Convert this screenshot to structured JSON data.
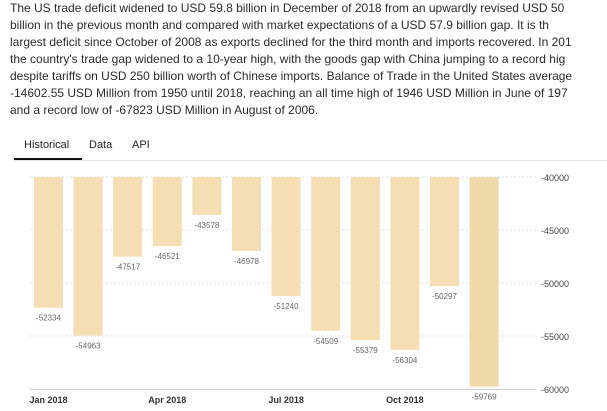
{
  "description": {
    "lines": [
      "The US trade deficit widened to USD 59.8 billion in December of 2018 from an upwardly revised USD 50",
      "billion in the previous month and compared with market expectations of a USD 57.9 billion gap. It is th",
      "largest deficit since October of 2008 as exports declined for the third month and imports recovered. In 201",
      "the country's trade gap widened to a 10-year high, with the goods gap with China jumping to a record hig",
      "despite tariffs on USD 250 billion worth of Chinese imports. Balance of Trade in the United States average",
      "-14602.55 USD Million from 1950 until 2018, reaching an all time high of 1946 USD Million in June of 197",
      "and a record low of -67823 USD Million in August of 2006."
    ]
  },
  "tabs": [
    {
      "label": "Historical",
      "active": true
    },
    {
      "label": "Data",
      "active": false
    },
    {
      "label": "API",
      "active": false
    }
  ],
  "chart_data": {
    "type": "bar",
    "categories": [
      "2018-01",
      "2018-02",
      "2018-03",
      "2018-04",
      "2018-05",
      "2018-06",
      "2018-07",
      "2018-08",
      "2018-09",
      "2018-10",
      "2018-11",
      "2018-12"
    ],
    "values": [
      -52334,
      -54963,
      -47517,
      -46521,
      -43578,
      -46978,
      -51240,
      -54509,
      -55379,
      -56304,
      -50297,
      -59769
    ],
    "x_tick_labels": [
      "Jan 2018",
      "Apr 2018",
      "Jul 2018",
      "Oct 2018"
    ],
    "y_ticks": [
      -40000,
      -45000,
      -50000,
      -55000,
      -60000
    ],
    "ylim": [
      -60000,
      -40000
    ],
    "bar_color": "#f5deb3",
    "last_bar_color": "#f0d9a8",
    "label_color": "#666666",
    "grid": true,
    "y_axis_position": "right"
  }
}
